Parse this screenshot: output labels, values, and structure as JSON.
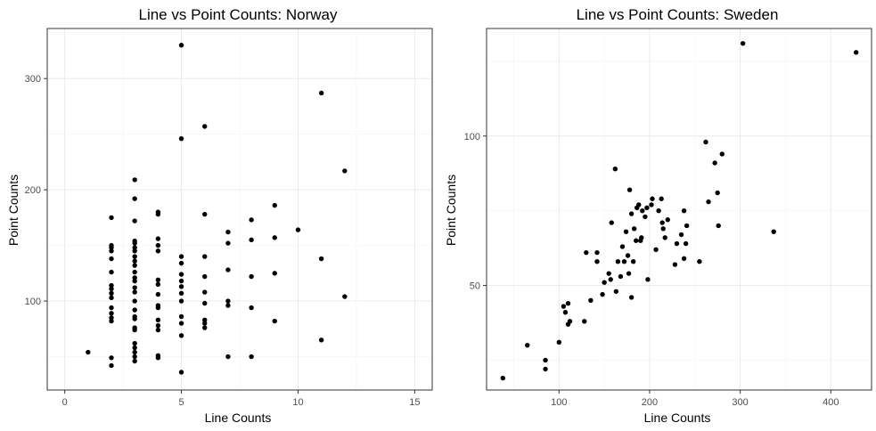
{
  "chart_data": [
    {
      "type": "scatter",
      "title": "Line vs Point Counts: Norway",
      "xlabel": "Line Counts",
      "ylabel": "Point Counts",
      "xlim": [
        -0.75,
        15.75
      ],
      "ylim": [
        20,
        345
      ],
      "x_ticks": [
        0,
        5,
        10,
        15
      ],
      "y_ticks": [
        100,
        200,
        300
      ],
      "grid": true,
      "x_tick_labels": [
        "0",
        "5",
        "10",
        "15"
      ],
      "y_tick_labels": [
        "100",
        "200",
        "300"
      ],
      "points": [
        [
          1,
          54
        ],
        [
          2,
          175
        ],
        [
          2,
          150
        ],
        [
          2,
          148
        ],
        [
          2,
          145
        ],
        [
          2,
          138
        ],
        [
          2,
          126
        ],
        [
          2,
          114
        ],
        [
          2,
          111
        ],
        [
          2,
          107
        ],
        [
          2,
          103
        ],
        [
          2,
          94
        ],
        [
          2,
          89
        ],
        [
          2,
          85
        ],
        [
          2,
          82
        ],
        [
          2,
          49
        ],
        [
          2,
          42
        ],
        [
          3,
          209
        ],
        [
          3,
          192
        ],
        [
          3,
          172
        ],
        [
          3,
          154
        ],
        [
          3,
          152
        ],
        [
          3,
          148
        ],
        [
          3,
          145
        ],
        [
          3,
          140
        ],
        [
          3,
          136
        ],
        [
          3,
          132
        ],
        [
          3,
          126
        ],
        [
          3,
          121
        ],
        [
          3,
          118
        ],
        [
          3,
          112
        ],
        [
          3,
          108
        ],
        [
          3,
          100
        ],
        [
          3,
          92
        ],
        [
          3,
          86
        ],
        [
          3,
          84
        ],
        [
          3,
          76
        ],
        [
          3,
          74
        ],
        [
          3,
          62
        ],
        [
          3,
          58
        ],
        [
          3,
          54
        ],
        [
          3,
          50
        ],
        [
          3,
          46
        ],
        [
          4,
          180
        ],
        [
          4,
          178
        ],
        [
          4,
          156
        ],
        [
          4,
          150
        ],
        [
          4,
          145
        ],
        [
          4,
          119
        ],
        [
          4,
          115
        ],
        [
          4,
          106
        ],
        [
          4,
          96
        ],
        [
          4,
          94
        ],
        [
          4,
          83
        ],
        [
          4,
          78
        ],
        [
          4,
          74
        ],
        [
          4,
          51
        ],
        [
          4,
          49
        ],
        [
          5,
          330
        ],
        [
          5,
          246
        ],
        [
          5,
          140
        ],
        [
          5,
          134
        ],
        [
          5,
          124
        ],
        [
          5,
          118
        ],
        [
          5,
          113
        ],
        [
          5,
          107
        ],
        [
          5,
          100
        ],
        [
          5,
          86
        ],
        [
          5,
          80
        ],
        [
          5,
          69
        ],
        [
          5,
          36
        ],
        [
          6,
          257
        ],
        [
          6,
          178
        ],
        [
          6,
          140
        ],
        [
          6,
          122
        ],
        [
          6,
          108
        ],
        [
          6,
          98
        ],
        [
          6,
          83
        ],
        [
          6,
          80
        ],
        [
          6,
          76
        ],
        [
          7,
          162
        ],
        [
          7,
          152
        ],
        [
          7,
          128
        ],
        [
          7,
          100
        ],
        [
          7,
          96
        ],
        [
          7,
          50
        ],
        [
          8,
          173
        ],
        [
          8,
          155
        ],
        [
          8,
          122
        ],
        [
          8,
          94
        ],
        [
          8,
          50
        ],
        [
          9,
          186
        ],
        [
          9,
          157
        ],
        [
          9,
          125
        ],
        [
          9,
          82
        ],
        [
          10,
          164
        ],
        [
          11,
          287
        ],
        [
          11,
          138
        ],
        [
          11,
          65
        ],
        [
          12,
          217
        ],
        [
          12,
          104
        ]
      ]
    },
    {
      "type": "scatter",
      "title": "Line vs Point Counts: Sweden",
      "xlabel": "Line Counts",
      "ylabel": "Point Counts",
      "xlim": [
        20,
        445
      ],
      "ylim": [
        15,
        136
      ],
      "x_ticks": [
        100,
        200,
        300,
        400
      ],
      "y_ticks": [
        50,
        100
      ],
      "grid": true,
      "x_tick_labels": [
        "100",
        "200",
        "300",
        "400"
      ],
      "y_tick_labels": [
        "50",
        "100"
      ],
      "points": [
        [
          38,
          19
        ],
        [
          65,
          30
        ],
        [
          85,
          25
        ],
        [
          85,
          22
        ],
        [
          100,
          31
        ],
        [
          105,
          43
        ],
        [
          107,
          41
        ],
        [
          110,
          44
        ],
        [
          110,
          37
        ],
        [
          112,
          38
        ],
        [
          128,
          38
        ],
        [
          130,
          61
        ],
        [
          135,
          45
        ],
        [
          142,
          58
        ],
        [
          142,
          61
        ],
        [
          148,
          47
        ],
        [
          150,
          51
        ],
        [
          155,
          54
        ],
        [
          157,
          52
        ],
        [
          158,
          71
        ],
        [
          162,
          89
        ],
        [
          163,
          48
        ],
        [
          165,
          58
        ],
        [
          168,
          53
        ],
        [
          170,
          63
        ],
        [
          172,
          58
        ],
        [
          174,
          68
        ],
        [
          176,
          60
        ],
        [
          177,
          54
        ],
        [
          178,
          82
        ],
        [
          180,
          46
        ],
        [
          180,
          74
        ],
        [
          182,
          58
        ],
        [
          183,
          69
        ],
        [
          185,
          65
        ],
        [
          186,
          76
        ],
        [
          188,
          77
        ],
        [
          190,
          65
        ],
        [
          191,
          66
        ],
        [
          192,
          75
        ],
        [
          195,
          73
        ],
        [
          197,
          76
        ],
        [
          198,
          52
        ],
        [
          202,
          77
        ],
        [
          203,
          79
        ],
        [
          207,
          62
        ],
        [
          210,
          75
        ],
        [
          213,
          79
        ],
        [
          214,
          71
        ],
        [
          215,
          69
        ],
        [
          217,
          66
        ],
        [
          220,
          72
        ],
        [
          228,
          57
        ],
        [
          230,
          64
        ],
        [
          235,
          67
        ],
        [
          238,
          59
        ],
        [
          238,
          75
        ],
        [
          240,
          64
        ],
        [
          241,
          70
        ],
        [
          255,
          58
        ],
        [
          262,
          98
        ],
        [
          265,
          78
        ],
        [
          272,
          91
        ],
        [
          275,
          81
        ],
        [
          276,
          70
        ],
        [
          280,
          94
        ],
        [
          303,
          131
        ],
        [
          337,
          68
        ],
        [
          428,
          128
        ]
      ]
    }
  ]
}
